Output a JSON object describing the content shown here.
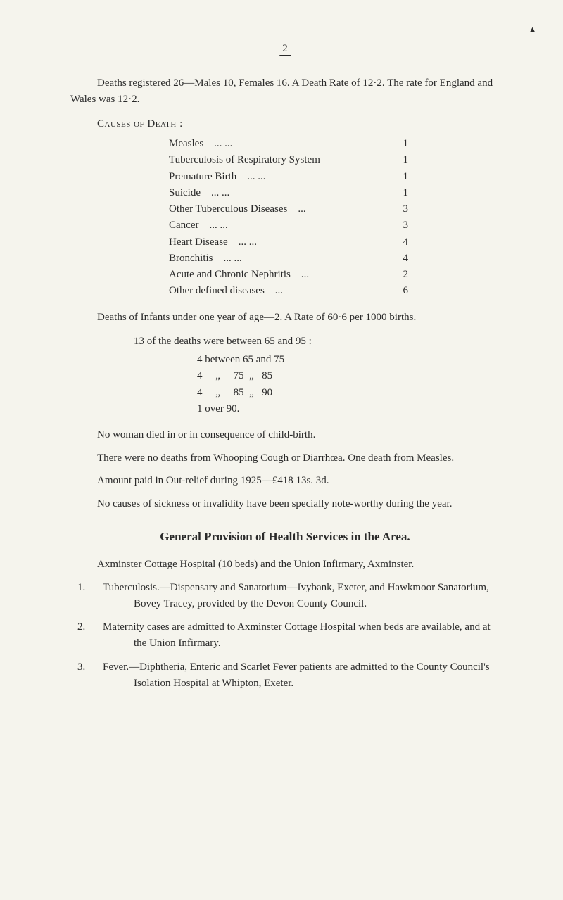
{
  "page_number": "2",
  "top_decorative_mark": "▲",
  "intro": "Deaths registered 26—Males 10, Females 16.   A Death Rate of 12·2.  The rate for England and Wales was 12·2.",
  "causes_label": "Causes of Death :",
  "causes": [
    {
      "name": "Measles",
      "dots": "...            ...",
      "value": "1"
    },
    {
      "name": "Tuberculosis of Respiratory System",
      "dots": "",
      "value": "1"
    },
    {
      "name": "Premature Birth",
      "dots": "...            ...",
      "value": "1"
    },
    {
      "name": "Suicide",
      "dots": "...            ...",
      "value": "1"
    },
    {
      "name": "Other Tuberculous Diseases",
      "dots": "...",
      "value": "3"
    },
    {
      "name": "Cancer",
      "dots": "...            ...",
      "value": "3"
    },
    {
      "name": "Heart Disease",
      "dots": "...            ...",
      "value": "4"
    },
    {
      "name": "Bronchitis",
      "dots": "...            ...",
      "value": "4"
    },
    {
      "name": "Acute and Chronic Nephritis",
      "dots": "...",
      "value": "2"
    },
    {
      "name": "Other defined diseases",
      "dots": "...",
      "value": "6"
    }
  ],
  "infants": "Deaths of Infants under one year of age—2.   A Rate of 60·6 per 1000 births.",
  "ages_lead": "13 of the deaths were between 65 and 95 :",
  "ages": [
    "4 between 65 and 75",
    "4     „     75  „   85",
    "4     „     85  „   90",
    "1 over 90."
  ],
  "p_childbirth": "No woman died in or in consequence of child-birth.",
  "p_whooping": "There were no deaths from Whooping Cough or Diarrhœa. One death from Measles.",
  "p_outrelief": "Amount paid in Out-relief during 1925—£418 13s. 3d.",
  "p_sickness": "No causes of sickness or invalidity have been specially note-worthy during the year.",
  "section_title": "General Provision of Health Services in the Area.",
  "p_axminster": "Axminster Cottage Hospital (10 beds) and the Union Infirmary, Axminster.",
  "items": [
    {
      "num": "1.",
      "text": "Tuberculosis.—Dispensary and Sanatorium—Ivybank, Exeter, and Hawkmoor Sanatorium, Bovey Tracey, provided by the Devon County Council."
    },
    {
      "num": "2.",
      "text": "Maternity cases are admitted to Axminster Cottage Hospital when beds are available, and at the Union Infirmary."
    },
    {
      "num": "3.",
      "text": "Fever.—Diphtheria, Enteric and Scarlet Fever patients are admitted to the County Council's Isolation Hospital at Whipton, Exeter."
    }
  ],
  "colors": {
    "background": "#f5f4ed",
    "text": "#2a2a2a"
  },
  "typography": {
    "body_fontsize_pt": 11,
    "title_fontsize_pt": 13,
    "font_family": "serif"
  }
}
